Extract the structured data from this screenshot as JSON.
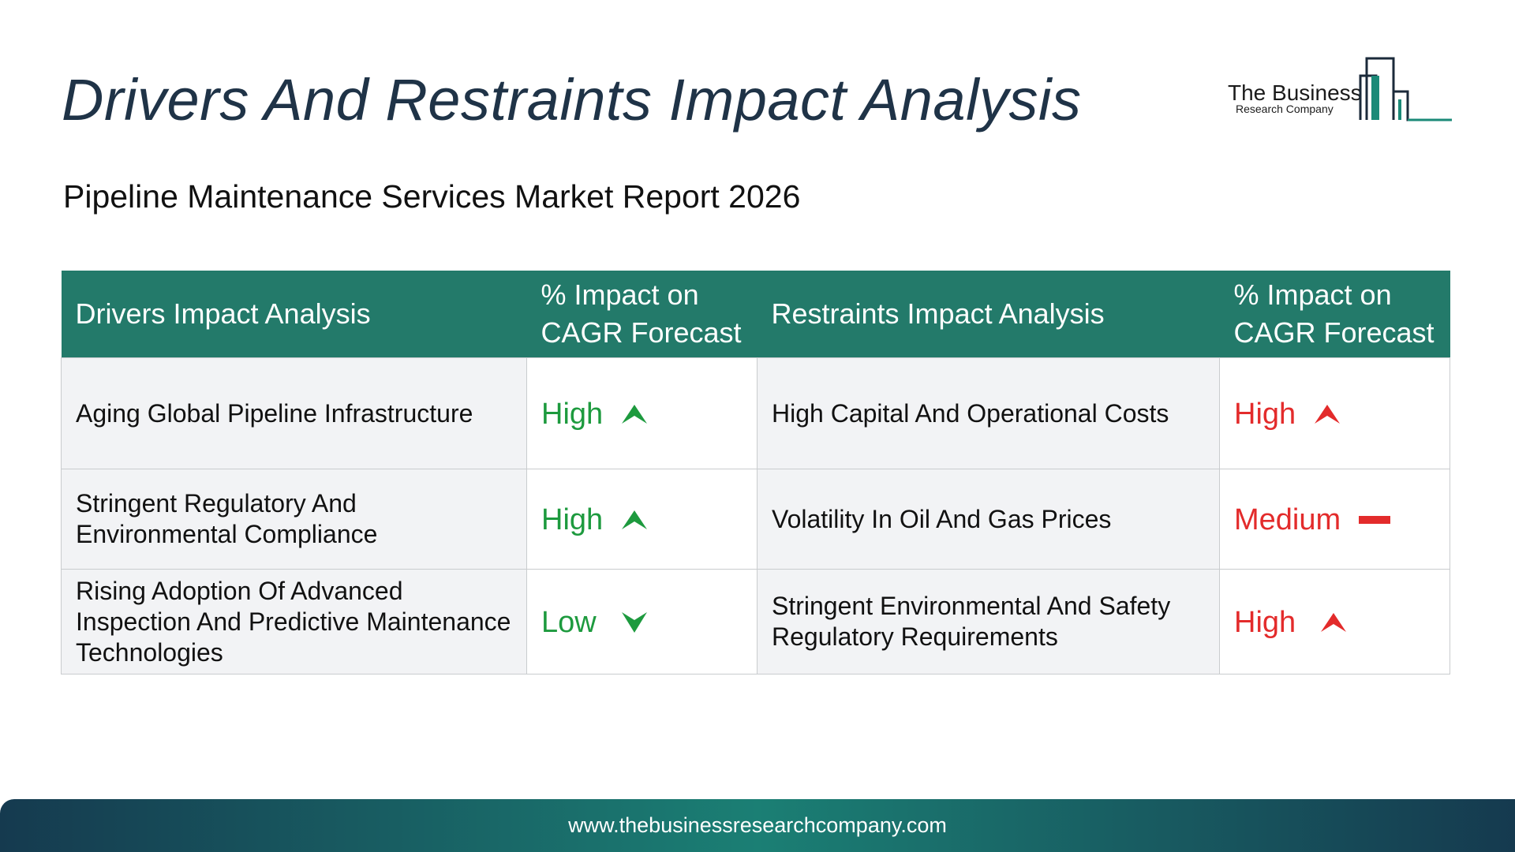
{
  "title": "Drivers And Restraints Impact Analysis",
  "subtitle": "Pipeline Maintenance Services Market Report 2026",
  "logo": {
    "line1": "The Business",
    "line2": "Research Company",
    "accent_color": "#1b8a78"
  },
  "table": {
    "headers": {
      "drivers": "Drivers Impact Analysis",
      "drivers_impact": "% Impact on CAGR Forecast",
      "restraints": "Restraints Impact Analysis",
      "restraints_impact": "% Impact on CAGR Forecast"
    },
    "rows": [
      {
        "driver": "Aging Global Pipeline Infrastructure",
        "driver_impact": "High",
        "driver_icon": "arrow-up-icon",
        "restraint": "High Capital And Operational Costs",
        "restraint_impact": "High",
        "restraint_icon": "arrow-up-icon"
      },
      {
        "driver": "Stringent Regulatory And Environmental Compliance",
        "driver_impact": "High",
        "driver_icon": "arrow-up-icon",
        "restraint": "Volatility In Oil And Gas Prices",
        "restraint_impact": "Medium",
        "restraint_icon": "dash-icon"
      },
      {
        "driver": "Rising Adoption Of Advanced Inspection And Predictive Maintenance Technologies",
        "driver_impact": "Low",
        "driver_icon": "arrow-down-icon",
        "restraint": "Stringent Environmental And Safety Regulatory Requirements",
        "restraint_impact": "High",
        "restraint_icon": "arrow-up-icon"
      }
    ]
  },
  "colors": {
    "header_bg": "#237a6a",
    "driver_level": "#1d9a3e",
    "restraint_level": "#e32b2b",
    "title": "#1f3347"
  },
  "footer": {
    "url": "www.thebusinessresearchcompany.com"
  }
}
